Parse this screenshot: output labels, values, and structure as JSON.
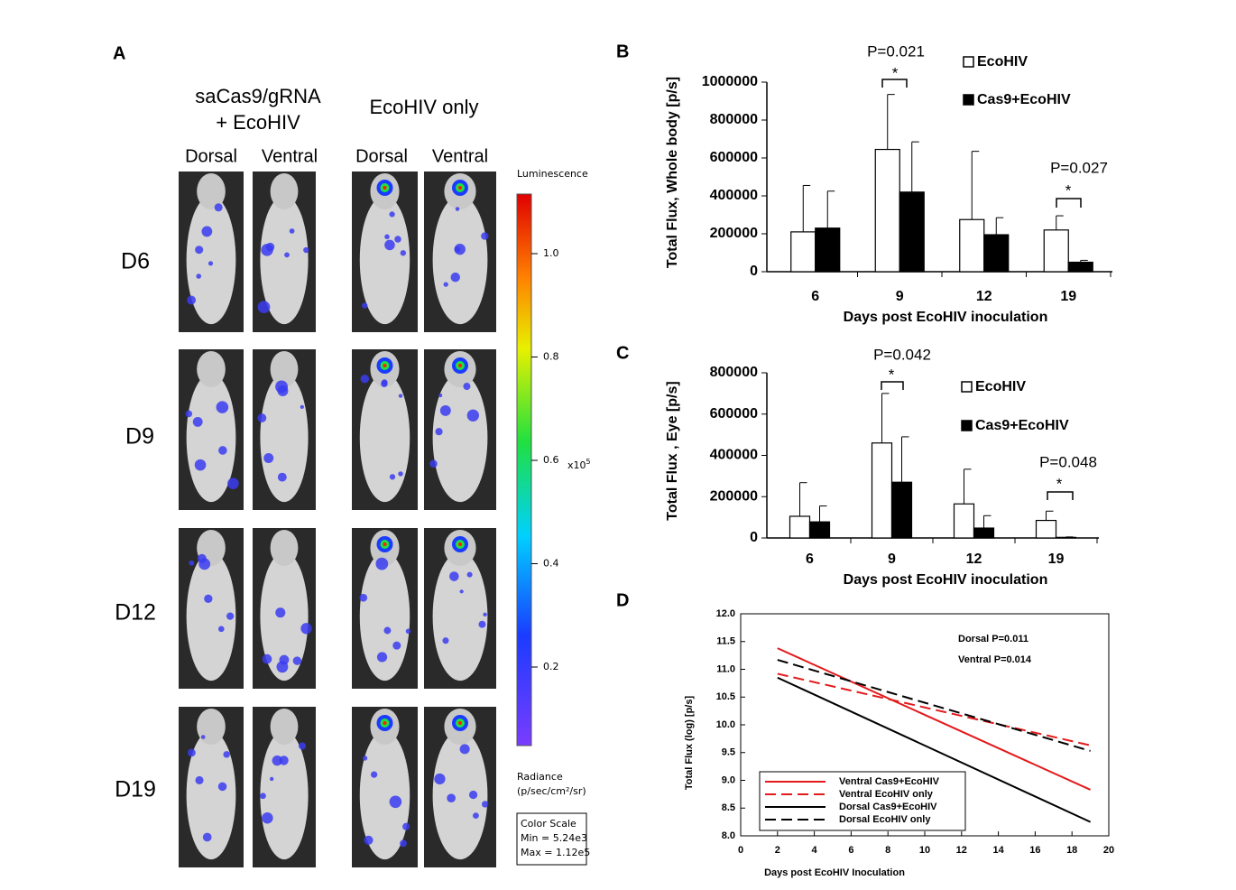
{
  "panel_a": {
    "label": "A",
    "group1_line1": "saCas9/gRNA",
    "group1_line2": "+ EcoHIV",
    "group2": "EcoHIV only",
    "views": [
      "Dorsal",
      "Ventral",
      "Dorsal",
      "Ventral"
    ],
    "rows": [
      "D6",
      "D9",
      "D12",
      "D19"
    ],
    "colorbar": {
      "title": "Luminescence",
      "ticks": [
        "1.0",
        "0.8",
        "0.6",
        "0.4",
        "0.2"
      ],
      "unit": "x10",
      "unit_exp": "5",
      "radiance": "Radiance",
      "radiance_unit": "(p/sec/cm²/sr)",
      "scale_title": "Color Scale",
      "min": "Min = 5.24e3",
      "max": "Max = 1.12e5"
    }
  },
  "chart_data": [
    {
      "type": "bar",
      "panel_label": "B",
      "ylabel": "Total Flux, Whole body [p/s]",
      "xlabel": "Days post EcoHIV inoculation",
      "categories": [
        "6",
        "9",
        "12",
        "19"
      ],
      "series": [
        {
          "name": "EcoHIV",
          "color": "#ffffff",
          "values": [
            210000,
            645000,
            275000,
            220000
          ],
          "errors": [
            245000,
            290000,
            360000,
            75000
          ]
        },
        {
          "name": "Cas9+EcoHIV",
          "color": "#000000",
          "values": [
            230000,
            420000,
            195000,
            50000
          ],
          "errors": [
            195000,
            265000,
            90000,
            10000
          ]
        }
      ],
      "ylim": [
        0,
        1000000
      ],
      "yticks": [
        0,
        200000,
        400000,
        600000,
        800000,
        1000000
      ],
      "annotations": [
        "P=0.021",
        "*",
        "P=0.027",
        "*"
      ]
    },
    {
      "type": "bar",
      "panel_label": "C",
      "ylabel": "Total Flux , Eye  [p/s]",
      "xlabel": "Days post EcoHIV inoculation",
      "categories": [
        "6",
        "9",
        "12",
        "19"
      ],
      "series": [
        {
          "name": "EcoHIV",
          "color": "#ffffff",
          "values": [
            105000,
            460000,
            165000,
            85000
          ],
          "errors": [
            163000,
            240000,
            168000,
            45000
          ]
        },
        {
          "name": "Cas9+EcoHIV",
          "color": "#000000",
          "values": [
            78000,
            270000,
            48000,
            3000
          ],
          "errors": [
            77000,
            220000,
            60000,
            2000
          ]
        }
      ],
      "ylim": [
        0,
        800000
      ],
      "yticks": [
        0,
        200000,
        400000,
        600000,
        800000
      ],
      "annotations": [
        "P=0.042",
        "*",
        "P=0.048",
        "*"
      ]
    },
    {
      "type": "line",
      "panel_label": "D",
      "ylabel": "Total Flux (log) [p/s]",
      "xlabel": "Days post EcoHIV Inoculation",
      "series": [
        {
          "name": "Ventral Cas9+EcoHIV",
          "color": "#e31a1c",
          "dashed": false,
          "x": [
            2,
            19
          ],
          "values": [
            11.38,
            8.83
          ]
        },
        {
          "name": "Ventral EcoHIV only",
          "color": "#e31a1c",
          "dashed": true,
          "x": [
            2,
            19
          ],
          "values": [
            10.92,
            9.63
          ]
        },
        {
          "name": "Dorsal Cas9+EcoHIV",
          "color": "#000000",
          "dashed": false,
          "x": [
            2,
            19
          ],
          "values": [
            10.85,
            8.25
          ]
        },
        {
          "name": "Dorsal EcoHIV only",
          "color": "#000000",
          "dashed": true,
          "x": [
            2,
            19
          ],
          "values": [
            11.17,
            9.53
          ]
        }
      ],
      "xlim": [
        0,
        20
      ],
      "xticks": [
        0,
        2,
        4,
        6,
        8,
        10,
        12,
        14,
        16,
        18,
        20
      ],
      "ylim": [
        8,
        12
      ],
      "yticks": [
        {
          "value": 8,
          "label": "8.0"
        },
        8.5,
        {
          "value": 9,
          "label": "9.0"
        },
        9.5,
        {
          "value": 10,
          "label": "10.0"
        },
        10.5,
        {
          "value": 11,
          "label": "11.0"
        },
        11.5,
        {
          "value": 12,
          "label": "12.0"
        }
      ],
      "annotations": [
        "Dorsal P=0.011",
        "Ventral P=0.014"
      ]
    }
  ]
}
